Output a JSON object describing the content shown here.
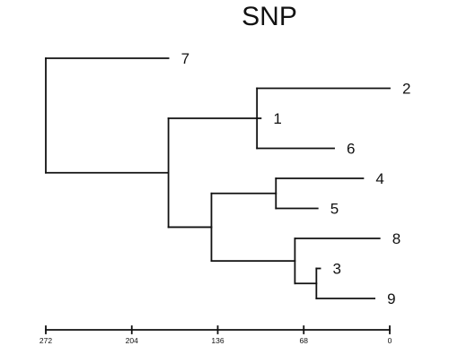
{
  "title": "SNP",
  "colors": {
    "line": "#111111",
    "text": "#111111",
    "background": "#ffffff"
  },
  "axis": {
    "ticks": [
      {
        "value": 272,
        "label": "272"
      },
      {
        "value": 204,
        "label": "204"
      },
      {
        "value": 136,
        "label": "136"
      },
      {
        "value": 68,
        "label": "68"
      },
      {
        "value": 0,
        "label": "0"
      }
    ],
    "range": [
      272,
      0
    ]
  },
  "tree": {
    "height": 272,
    "children": [
      {
        "leaf": "7",
        "height": 175
      },
      {
        "height": 175,
        "children": [
          {
            "height": 105,
            "children": [
              {
                "leaf": "2",
                "height": 0
              },
              {
                "leaf": "1",
                "height": 102
              },
              {
                "leaf": "6",
                "height": 44
              }
            ]
          },
          {
            "height": 141,
            "children": [
              {
                "height": 90,
                "children": [
                  {
                    "leaf": "4",
                    "height": 21
                  },
                  {
                    "leaf": "5",
                    "height": 57
                  }
                ]
              },
              {
                "height": 75,
                "children": [
                  {
                    "leaf": "8",
                    "height": 8
                  },
                  {
                    "height": 58,
                    "children": [
                      {
                        "leaf": "3",
                        "height": 55
                      },
                      {
                        "leaf": "9",
                        "height": 12
                      }
                    ]
                  }
                ]
              }
            ]
          }
        ]
      }
    ]
  }
}
